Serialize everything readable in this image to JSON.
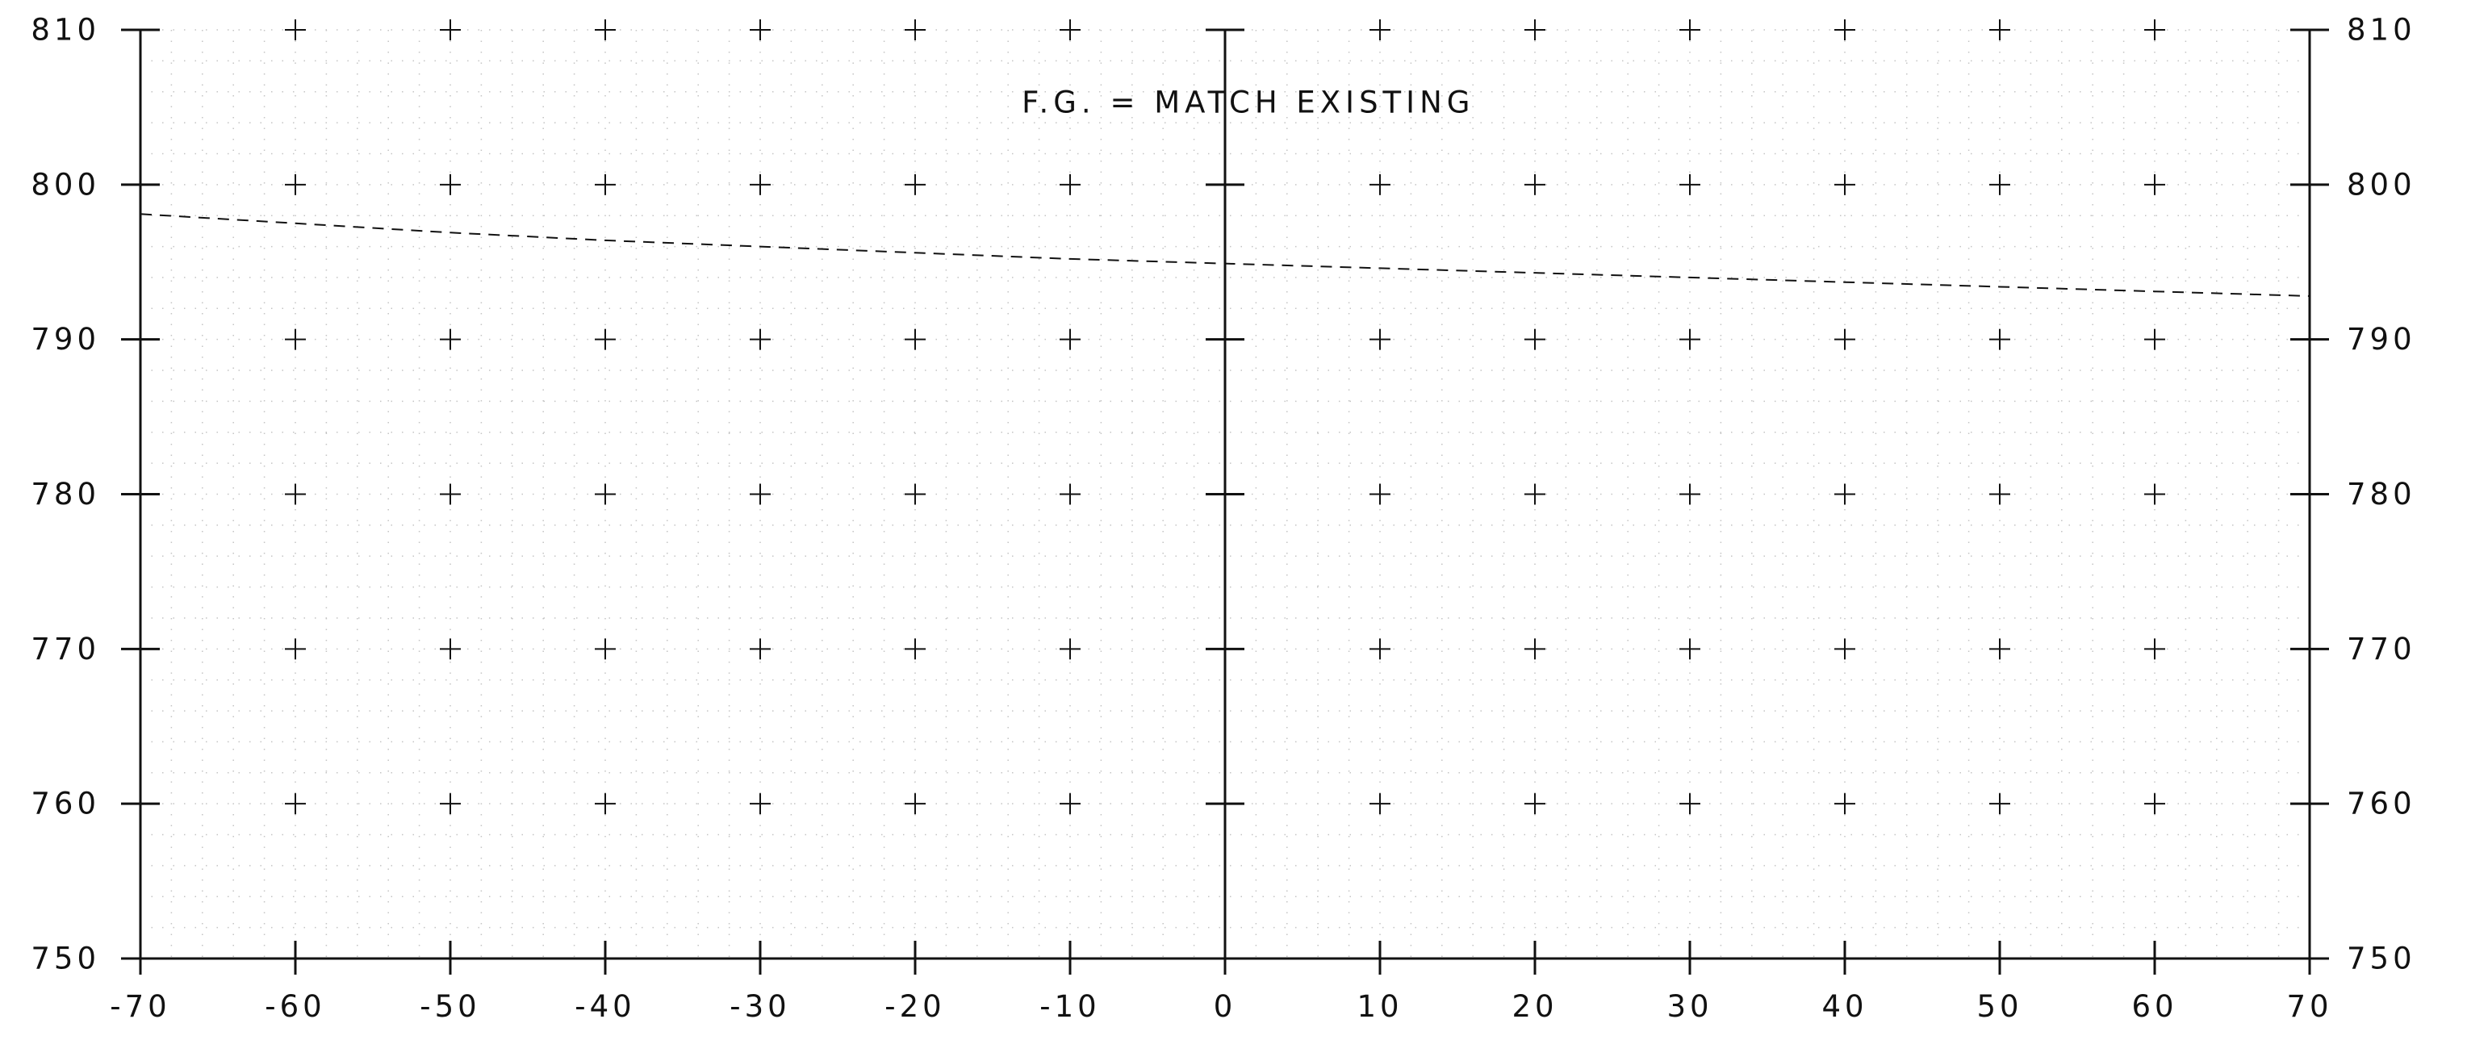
{
  "chart_data": {
    "type": "line",
    "title": "",
    "xlabel": "",
    "ylabel": "",
    "xlim": [
      -70,
      70
    ],
    "ylim": [
      750,
      810
    ],
    "x_ticks": [
      -70,
      -60,
      -50,
      -40,
      -30,
      -20,
      -10,
      0,
      10,
      20,
      30,
      40,
      50,
      60,
      70
    ],
    "x_tick_labels": [
      "-70",
      "-60",
      "-50",
      "-40",
      "-30",
      "-20",
      "-10",
      "0",
      "10",
      "20",
      "30",
      "40",
      "50",
      "60",
      "70"
    ],
    "y_ticks": [
      750,
      760,
      770,
      780,
      790,
      800,
      810
    ],
    "y_tick_labels": [
      "750",
      "760",
      "770",
      "780",
      "790",
      "800",
      "810"
    ],
    "grid": "dotted minor grid with cross markers at major intersections",
    "annotations": [
      {
        "text": "F.G. = MATCH EXISTING",
        "x": 1.5,
        "y": 805.3
      }
    ],
    "series": [
      {
        "style": "dashed",
        "color": "#111111",
        "x": [
          -70,
          -60,
          -50,
          -40,
          -30,
          -20,
          -10,
          0,
          10,
          20,
          30,
          40,
          50,
          60,
          70
        ],
        "y": [
          798.1,
          797.5,
          796.9,
          796.4,
          796.0,
          795.6,
          795.2,
          794.9,
          794.6,
          794.3,
          794.0,
          793.7,
          793.4,
          793.1,
          792.8
        ]
      }
    ]
  }
}
